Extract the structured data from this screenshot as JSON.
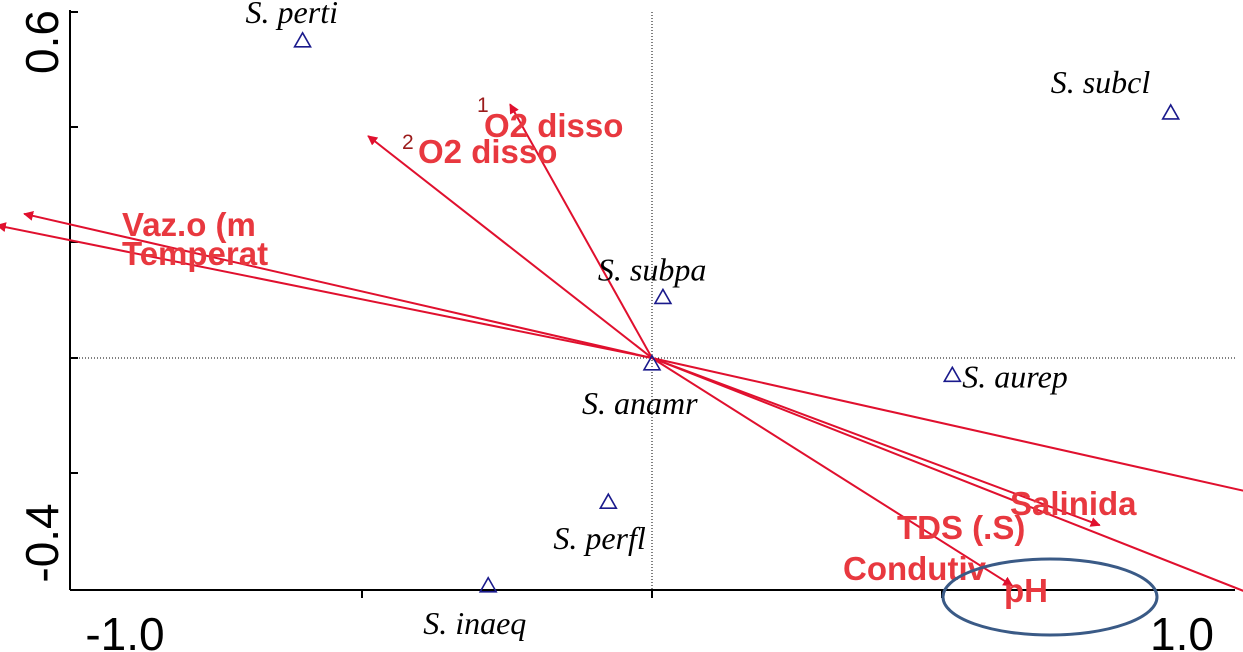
{
  "chart_data": {
    "type": "scatter",
    "title": "",
    "xlabel": "",
    "ylabel": "",
    "xlim": [
      -1.0,
      1.0
    ],
    "ylim": [
      -0.4,
      0.6
    ],
    "x_tick_labels": [
      "-1.0",
      "1.0"
    ],
    "y_tick_labels": [
      "0.6",
      "-0.4"
    ],
    "grid": false,
    "reference_lines": "x=0 and y=0 dotted",
    "species": [
      {
        "label": "S. perti",
        "x": -0.64,
        "y": 0.55
      },
      {
        "label": "S. subcl",
        "x": 0.95,
        "y": 0.425
      },
      {
        "label": "S. subpa",
        "x": 0.02,
        "y": 0.105
      },
      {
        "label": "S. anamr",
        "x": 0.0,
        "y": -0.01
      },
      {
        "label": "S. aurep",
        "x": 0.55,
        "y": -0.03
      },
      {
        "label": "S. perfl",
        "x": -0.08,
        "y": -0.25
      },
      {
        "label": "S. inaeq",
        "x": -0.3,
        "y": -0.395
      }
    ],
    "arrows": [
      {
        "label": "O2 disso",
        "index": "1",
        "x": -0.26,
        "y": 0.44
      },
      {
        "label": "O2 disso",
        "index": "2",
        "x": -0.52,
        "y": 0.385
      },
      {
        "label": "Vaz.o (m",
        "x": -1.15,
        "y": 0.25
      },
      {
        "label": "Temperat",
        "x": -1.2,
        "y": 0.23
      },
      {
        "label": "Salinida",
        "x": 1.2,
        "y": -0.255
      },
      {
        "label": "TDS (.S)",
        "x": 0.82,
        "y": -0.29
      },
      {
        "label": "Condutiv",
        "x": 0.66,
        "y": -0.395
      },
      {
        "label": "pH",
        "x": 1.18,
        "y": -0.44
      }
    ],
    "highlight": "pH",
    "colors": {
      "arrow": "#e0102e",
      "arrow_label": "#e8383f",
      "species_marker": "#1a1a8c",
      "highlight_ellipse": "#3a5a86",
      "index": "#9b1b1b"
    }
  }
}
